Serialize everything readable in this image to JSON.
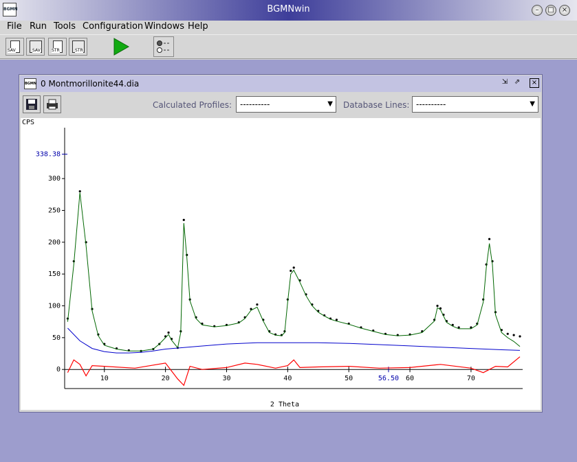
{
  "window": {
    "title": "BGMNwin",
    "icon_label": "BGMN",
    "controls": [
      "minimize",
      "maximize",
      "close"
    ]
  },
  "menu": [
    {
      "label": "File"
    },
    {
      "label": "Run"
    },
    {
      "label": "Tools"
    },
    {
      "label": "Configuration"
    },
    {
      "label": "Windows"
    },
    {
      "label": "Help"
    }
  ],
  "toolbar": {
    "save_label": "SAV",
    "save2_label": "SAV",
    "str_label": "STR",
    "str2_label": "STR",
    "run_icon": "play-icon",
    "settings_icon": "radio-options-icon"
  },
  "document": {
    "title": "0 Montmorillonite44.dia",
    "calculated_profiles_label": "Calculated Profiles:",
    "calculated_profiles_value": "----------",
    "database_lines_label": "Database Lines:",
    "database_lines_value": "----------"
  },
  "colors": {
    "measured": "#000000",
    "calculated": "#006600",
    "background": "#0000cc",
    "difference": "#ff0000",
    "desktop": "#9d9dcd"
  },
  "chart_data": {
    "type": "line",
    "xlabel": "2 Theta",
    "ylabel": "CPS",
    "xlim": [
      3.5,
      78
    ],
    "ylim": [
      -30,
      380
    ],
    "x_ticks": [
      10,
      20,
      30,
      40,
      50,
      60,
      70
    ],
    "y_ticks": [
      0,
      50,
      100,
      150,
      200,
      250,
      300
    ],
    "cursor": {
      "y_readout": "338.38",
      "x_readout": "56.50"
    },
    "series": [
      {
        "name": "measured",
        "x": [
          4,
          5,
          6,
          7,
          8,
          9,
          10,
          12,
          14,
          16,
          18,
          19,
          20,
          20.5,
          21,
          22,
          22.5,
          23,
          23.5,
          24,
          25,
          26,
          28,
          30,
          32,
          33,
          34,
          35,
          36,
          37,
          38,
          39,
          39.5,
          40,
          40.5,
          41,
          42,
          43,
          44,
          45,
          46,
          47,
          48,
          50,
          52,
          54,
          56,
          58,
          60,
          62,
          64,
          64.5,
          65,
          65.5,
          66,
          67,
          68,
          70,
          71,
          72,
          72.5,
          73,
          73.5,
          74,
          75,
          76,
          77,
          78
        ],
        "y": [
          80,
          170,
          280,
          200,
          95,
          55,
          40,
          33,
          30,
          29,
          32,
          40,
          52,
          58,
          48,
          34,
          60,
          235,
          180,
          110,
          82,
          72,
          68,
          70,
          74,
          82,
          95,
          102,
          78,
          60,
          55,
          54,
          60,
          110,
          155,
          160,
          140,
          118,
          102,
          92,
          85,
          80,
          78,
          72,
          66,
          61,
          56,
          54,
          55,
          60,
          78,
          100,
          96,
          86,
          76,
          70,
          66,
          66,
          72,
          110,
          165,
          205,
          170,
          90,
          62,
          56,
          54,
          52
        ]
      },
      {
        "name": "calculated",
        "x": [
          4,
          5,
          6,
          7,
          8,
          9,
          10,
          12,
          14,
          16,
          18,
          19,
          20,
          20.5,
          21,
          22,
          22.5,
          23,
          23.5,
          24,
          25,
          26,
          28,
          30,
          32,
          33,
          34,
          35,
          36,
          37,
          38,
          39,
          39.5,
          40,
          40.5,
          41,
          42,
          43,
          44,
          45,
          46,
          47,
          48,
          50,
          52,
          54,
          56,
          58,
          60,
          62,
          64,
          64.5,
          65,
          65.5,
          66,
          67,
          68,
          70,
          71,
          72,
          72.5,
          73,
          73.5,
          74,
          75,
          76,
          77,
          78
        ],
        "y": [
          75,
          165,
          278,
          195,
          92,
          53,
          38,
          32,
          29,
          29,
          32,
          40,
          50,
          55,
          46,
          34,
          58,
          230,
          176,
          108,
          80,
          70,
          67,
          69,
          73,
          80,
          93,
          98,
          76,
          58,
          54,
          53,
          58,
          106,
          150,
          156,
          137,
          116,
          100,
          90,
          84,
          79,
          76,
          71,
          65,
          60,
          55,
          53,
          54,
          58,
          76,
          97,
          94,
          84,
          74,
          68,
          64,
          64,
          70,
          106,
          160,
          198,
          165,
          86,
          58,
          50,
          44,
          36
        ]
      },
      {
        "name": "background",
        "x": [
          4,
          6,
          8,
          10,
          12,
          14,
          16,
          18,
          20,
          25,
          30,
          35,
          40,
          45,
          50,
          55,
          60,
          65,
          70,
          75,
          78
        ],
        "y": [
          65,
          45,
          33,
          28,
          26,
          26,
          27,
          29,
          32,
          36,
          40,
          42,
          42,
          42,
          41,
          39,
          37,
          35,
          33,
          31,
          30
        ]
      },
      {
        "name": "difference",
        "x": [
          4,
          5,
          6,
          7,
          8,
          10,
          15,
          20,
          22,
          23,
          24,
          26,
          30,
          33,
          35,
          38,
          40,
          41,
          42,
          45,
          50,
          55,
          60,
          65,
          70,
          72,
          73,
          74,
          76,
          78
        ],
        "y": [
          -5,
          15,
          8,
          -10,
          6,
          5,
          2,
          10,
          -15,
          -25,
          5,
          0,
          3,
          10,
          8,
          2,
          6,
          15,
          3,
          4,
          5,
          2,
          3,
          8,
          2,
          -5,
          0,
          5,
          4,
          20
        ]
      }
    ]
  }
}
